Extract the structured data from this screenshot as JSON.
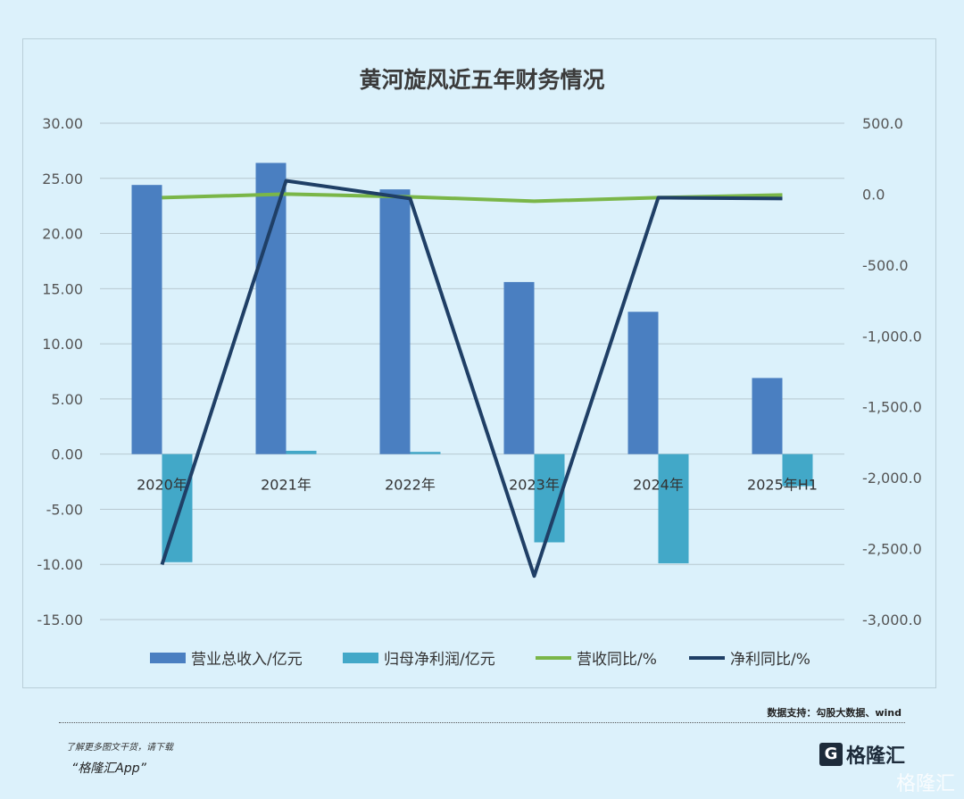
{
  "chart_data": {
    "type": "bar",
    "title": "黄河旋风近五年财务情况",
    "categories": [
      "2020年",
      "2021年",
      "2022年",
      "2023年",
      "2024年",
      "2025年H1"
    ],
    "series": [
      {
        "name": "营业总收入/亿元",
        "type": "bar",
        "axis": "left",
        "color": "#4a7fc1",
        "values": [
          24.4,
          26.4,
          24.0,
          15.6,
          12.9,
          6.9
        ]
      },
      {
        "name": "归母净利润/亿元",
        "type": "bar",
        "axis": "left",
        "color": "#42a8c8",
        "values": [
          -9.8,
          0.3,
          0.2,
          -8.0,
          -9.9,
          -2.9
        ]
      },
      {
        "name": "营收同比/%",
        "type": "line",
        "axis": "right",
        "color": "#7ab648",
        "values": [
          -25,
          0,
          -19,
          -50,
          -25,
          -6
        ]
      },
      {
        "name": "净利同比/%",
        "type": "line",
        "axis": "right",
        "color": "#1f3f66",
        "values": [
          -2612,
          94,
          -31,
          -2693,
          -25,
          -31
        ]
      }
    ],
    "ylim": [
      -15,
      30
    ],
    "yticks": [
      "30.00",
      "25.00",
      "20.00",
      "15.00",
      "10.00",
      "5.00",
      "0.00",
      "-5.00",
      "-10.00",
      "-15.00"
    ],
    "y2lim": [
      -3000,
      500
    ],
    "y2ticks": [
      "500.0",
      "0.0",
      "-500.0",
      "-1,000.0",
      "-1,500.0",
      "-2,000.0",
      "-2,500.0",
      "-3,000.0"
    ],
    "grid": true,
    "legend": "bottom"
  },
  "footer": {
    "source": "数据支持：勾股大数据、wind",
    "more": "了解更多图文干货，请下载",
    "app": "“格隆汇App”",
    "logo": "格隆汇",
    "watermark": "格隆汇"
  }
}
